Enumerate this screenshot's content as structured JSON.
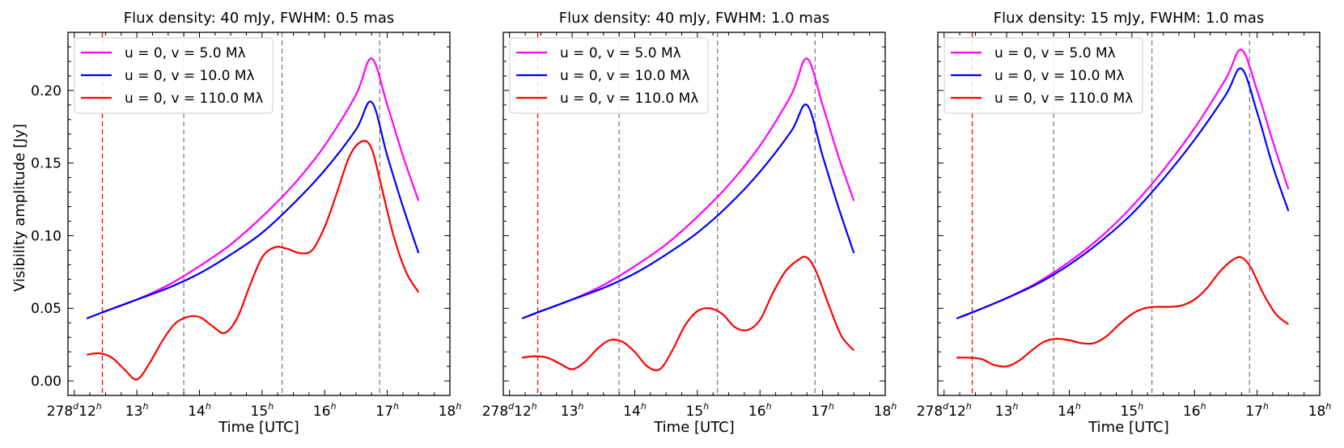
{
  "figure": {
    "ylabel": "Visibility amplitude [Jy]",
    "xlabel": "Time [UTC]"
  },
  "chart_data": [
    {
      "type": "line",
      "title": "Flux density: 40 mJy, FWHM: 0.5 mas",
      "xlabel": "Time [UTC]",
      "ylabel": "Visibility amplitude [Jy]",
      "xlim": [
        11.9,
        18.0
      ],
      "ylim": [
        -0.01,
        0.24
      ],
      "x_ticks": [
        12,
        13,
        14,
        15,
        16,
        17,
        18
      ],
      "x_tick_labels": [
        {
          "main": "278",
          "sup": "d",
          "main2": "12",
          "sup2": "h"
        },
        {
          "main": "13",
          "sup": "h"
        },
        {
          "main": "14",
          "sup": "h"
        },
        {
          "main": "15",
          "sup": "h"
        },
        {
          "main": "16",
          "sup": "h"
        },
        {
          "main": "17",
          "sup": "h"
        },
        {
          "main": "18",
          "sup": "h"
        }
      ],
      "y_ticks": [
        0.0,
        0.05,
        0.1,
        0.15,
        0.2
      ],
      "y_tick_labels": [
        "0.00",
        "0.05",
        "0.10",
        "0.15",
        "0.20"
      ],
      "show_y_tick_labels": true,
      "vlines": [
        {
          "x": 12.45,
          "color": "#ff0000"
        },
        {
          "x": 13.75,
          "color": "#808080"
        },
        {
          "x": 15.32,
          "color": "#808080"
        },
        {
          "x": 16.88,
          "color": "#808080"
        }
      ],
      "legend": "top-left",
      "series": [
        {
          "name": "u = 0, v = 5.0 Mλ",
          "color": "#ff00ff",
          "x": [
            12.2,
            12.5,
            13.0,
            13.5,
            14.0,
            14.5,
            15.0,
            15.5,
            16.0,
            16.5,
            16.75,
            17.0,
            17.25,
            17.5
          ],
          "y": [
            0.043,
            0.048,
            0.056,
            0.066,
            0.079,
            0.094,
            0.113,
            0.135,
            0.162,
            0.197,
            0.222,
            0.19,
            0.155,
            0.124
          ]
        },
        {
          "name": "u = 0, v = 10.0 Mλ",
          "color": "#0000ff",
          "x": [
            12.2,
            12.5,
            13.0,
            13.5,
            14.0,
            14.5,
            15.0,
            15.5,
            16.0,
            16.5,
            16.75,
            17.0,
            17.25,
            17.5
          ],
          "y": [
            0.043,
            0.048,
            0.056,
            0.064,
            0.074,
            0.087,
            0.102,
            0.122,
            0.145,
            0.173,
            0.192,
            0.155,
            0.12,
            0.088
          ]
        },
        {
          "name": "u = 0, v = 110.0 Mλ",
          "color": "#ff0000",
          "x": [
            12.2,
            12.4,
            12.6,
            12.8,
            13.0,
            13.2,
            13.4,
            13.6,
            13.8,
            14.0,
            14.2,
            14.4,
            14.6,
            14.8,
            15.0,
            15.2,
            15.4,
            15.6,
            15.8,
            16.0,
            16.2,
            16.4,
            16.6,
            16.75,
            16.9,
            17.1,
            17.3,
            17.5
          ],
          "y": [
            0.018,
            0.019,
            0.016,
            0.008,
            0.001,
            0.012,
            0.027,
            0.039,
            0.044,
            0.044,
            0.038,
            0.033,
            0.043,
            0.065,
            0.085,
            0.092,
            0.091,
            0.088,
            0.09,
            0.106,
            0.13,
            0.155,
            0.165,
            0.16,
            0.135,
            0.1,
            0.075,
            0.061
          ]
        }
      ]
    },
    {
      "type": "line",
      "title": "Flux density: 40 mJy, FWHM: 1.0 mas",
      "xlabel": "Time [UTC]",
      "ylabel": "",
      "xlim": [
        11.9,
        18.0
      ],
      "ylim": [
        -0.01,
        0.24
      ],
      "x_ticks": [
        12,
        13,
        14,
        15,
        16,
        17,
        18
      ],
      "x_tick_labels": [
        {
          "main": "278",
          "sup": "d",
          "main2": "12",
          "sup2": "h"
        },
        {
          "main": "13",
          "sup": "h"
        },
        {
          "main": "14",
          "sup": "h"
        },
        {
          "main": "15",
          "sup": "h"
        },
        {
          "main": "16",
          "sup": "h"
        },
        {
          "main": "17",
          "sup": "h"
        },
        {
          "main": "18",
          "sup": "h"
        }
      ],
      "y_ticks": [
        0.0,
        0.05,
        0.1,
        0.15,
        0.2
      ],
      "y_tick_labels": [
        "",
        "",
        "",
        "",
        ""
      ],
      "show_y_tick_labels": false,
      "vlines": [
        {
          "x": 12.45,
          "color": "#ff0000"
        },
        {
          "x": 13.75,
          "color": "#808080"
        },
        {
          "x": 15.32,
          "color": "#808080"
        },
        {
          "x": 16.88,
          "color": "#808080"
        }
      ],
      "legend": "top-left",
      "series": [
        {
          "name": "u = 0, v = 5.0 Mλ",
          "color": "#ff00ff",
          "x": [
            12.2,
            12.5,
            13.0,
            13.5,
            14.0,
            14.5,
            15.0,
            15.5,
            16.0,
            16.5,
            16.75,
            17.0,
            17.25,
            17.5
          ],
          "y": [
            0.043,
            0.048,
            0.056,
            0.066,
            0.079,
            0.094,
            0.113,
            0.135,
            0.162,
            0.197,
            0.222,
            0.19,
            0.155,
            0.124
          ]
        },
        {
          "name": "u = 0, v = 10.0 Mλ",
          "color": "#0000ff",
          "x": [
            12.2,
            12.5,
            13.0,
            13.5,
            14.0,
            14.5,
            15.0,
            15.5,
            16.0,
            16.5,
            16.75,
            17.0,
            17.25,
            17.5
          ],
          "y": [
            0.043,
            0.048,
            0.056,
            0.064,
            0.074,
            0.087,
            0.102,
            0.121,
            0.144,
            0.172,
            0.19,
            0.155,
            0.12,
            0.088
          ]
        },
        {
          "name": "u = 0, v = 110.0 Mλ",
          "color": "#ff0000",
          "x": [
            12.2,
            12.4,
            12.6,
            12.8,
            13.0,
            13.2,
            13.4,
            13.6,
            13.8,
            14.0,
            14.2,
            14.4,
            14.6,
            14.8,
            15.0,
            15.2,
            15.4,
            15.6,
            15.8,
            16.0,
            16.2,
            16.4,
            16.6,
            16.75,
            16.9,
            17.1,
            17.3,
            17.5
          ],
          "y": [
            0.016,
            0.017,
            0.016,
            0.012,
            0.008,
            0.013,
            0.022,
            0.028,
            0.027,
            0.02,
            0.01,
            0.008,
            0.021,
            0.038,
            0.048,
            0.05,
            0.046,
            0.037,
            0.035,
            0.042,
            0.06,
            0.075,
            0.083,
            0.085,
            0.075,
            0.052,
            0.031,
            0.021
          ]
        }
      ]
    },
    {
      "type": "line",
      "title": "Flux density: 15 mJy, FWHM: 1.0 mas",
      "xlabel": "Time [UTC]",
      "ylabel": "",
      "xlim": [
        11.9,
        18.0
      ],
      "ylim": [
        -0.01,
        0.24
      ],
      "x_ticks": [
        12,
        13,
        14,
        15,
        16,
        17,
        18
      ],
      "x_tick_labels": [
        {
          "main": "278",
          "sup": "d",
          "main2": "12",
          "sup2": "h"
        },
        {
          "main": "13",
          "sup": "h"
        },
        {
          "main": "14",
          "sup": "h"
        },
        {
          "main": "15",
          "sup": "h"
        },
        {
          "main": "16",
          "sup": "h"
        },
        {
          "main": "17",
          "sup": "h"
        },
        {
          "main": "18",
          "sup": "h"
        }
      ],
      "y_ticks": [
        0.0,
        0.05,
        0.1,
        0.15,
        0.2
      ],
      "y_tick_labels": [
        "",
        "",
        "",
        "",
        ""
      ],
      "show_y_tick_labels": false,
      "vlines": [
        {
          "x": 12.45,
          "color": "#ff0000"
        },
        {
          "x": 13.75,
          "color": "#808080"
        },
        {
          "x": 15.32,
          "color": "#808080"
        },
        {
          "x": 16.88,
          "color": "#808080"
        }
      ],
      "legend": "top-left",
      "series": [
        {
          "name": "u = 0, v = 5.0 Mλ",
          "color": "#ff00ff",
          "x": [
            12.2,
            12.5,
            13.0,
            13.5,
            14.0,
            14.5,
            15.0,
            15.5,
            16.0,
            16.5,
            16.75,
            17.0,
            17.25,
            17.5
          ],
          "y": [
            0.043,
            0.048,
            0.057,
            0.068,
            0.082,
            0.099,
            0.12,
            0.145,
            0.174,
            0.208,
            0.228,
            0.2,
            0.165,
            0.132
          ]
        },
        {
          "name": "u = 0, v = 10.0 Mλ",
          "color": "#0000ff",
          "x": [
            12.2,
            12.5,
            13.0,
            13.5,
            14.0,
            14.5,
            15.0,
            15.5,
            16.0,
            16.5,
            16.75,
            17.0,
            17.25,
            17.5
          ],
          "y": [
            0.043,
            0.048,
            0.057,
            0.067,
            0.08,
            0.096,
            0.115,
            0.139,
            0.166,
            0.197,
            0.215,
            0.185,
            0.148,
            0.117
          ]
        },
        {
          "name": "u = 0, v = 110.0 Mλ",
          "color": "#ff0000",
          "x": [
            12.2,
            12.4,
            12.6,
            12.8,
            13.0,
            13.2,
            13.4,
            13.6,
            13.8,
            14.0,
            14.2,
            14.4,
            14.6,
            14.8,
            15.0,
            15.2,
            15.4,
            15.6,
            15.8,
            16.0,
            16.2,
            16.4,
            16.6,
            16.75,
            16.9,
            17.1,
            17.3,
            17.5
          ],
          "y": [
            0.016,
            0.016,
            0.015,
            0.011,
            0.01,
            0.014,
            0.021,
            0.027,
            0.029,
            0.028,
            0.026,
            0.026,
            0.031,
            0.039,
            0.046,
            0.05,
            0.051,
            0.051,
            0.052,
            0.056,
            0.064,
            0.075,
            0.083,
            0.085,
            0.078,
            0.06,
            0.046,
            0.039
          ]
        }
      ]
    }
  ]
}
